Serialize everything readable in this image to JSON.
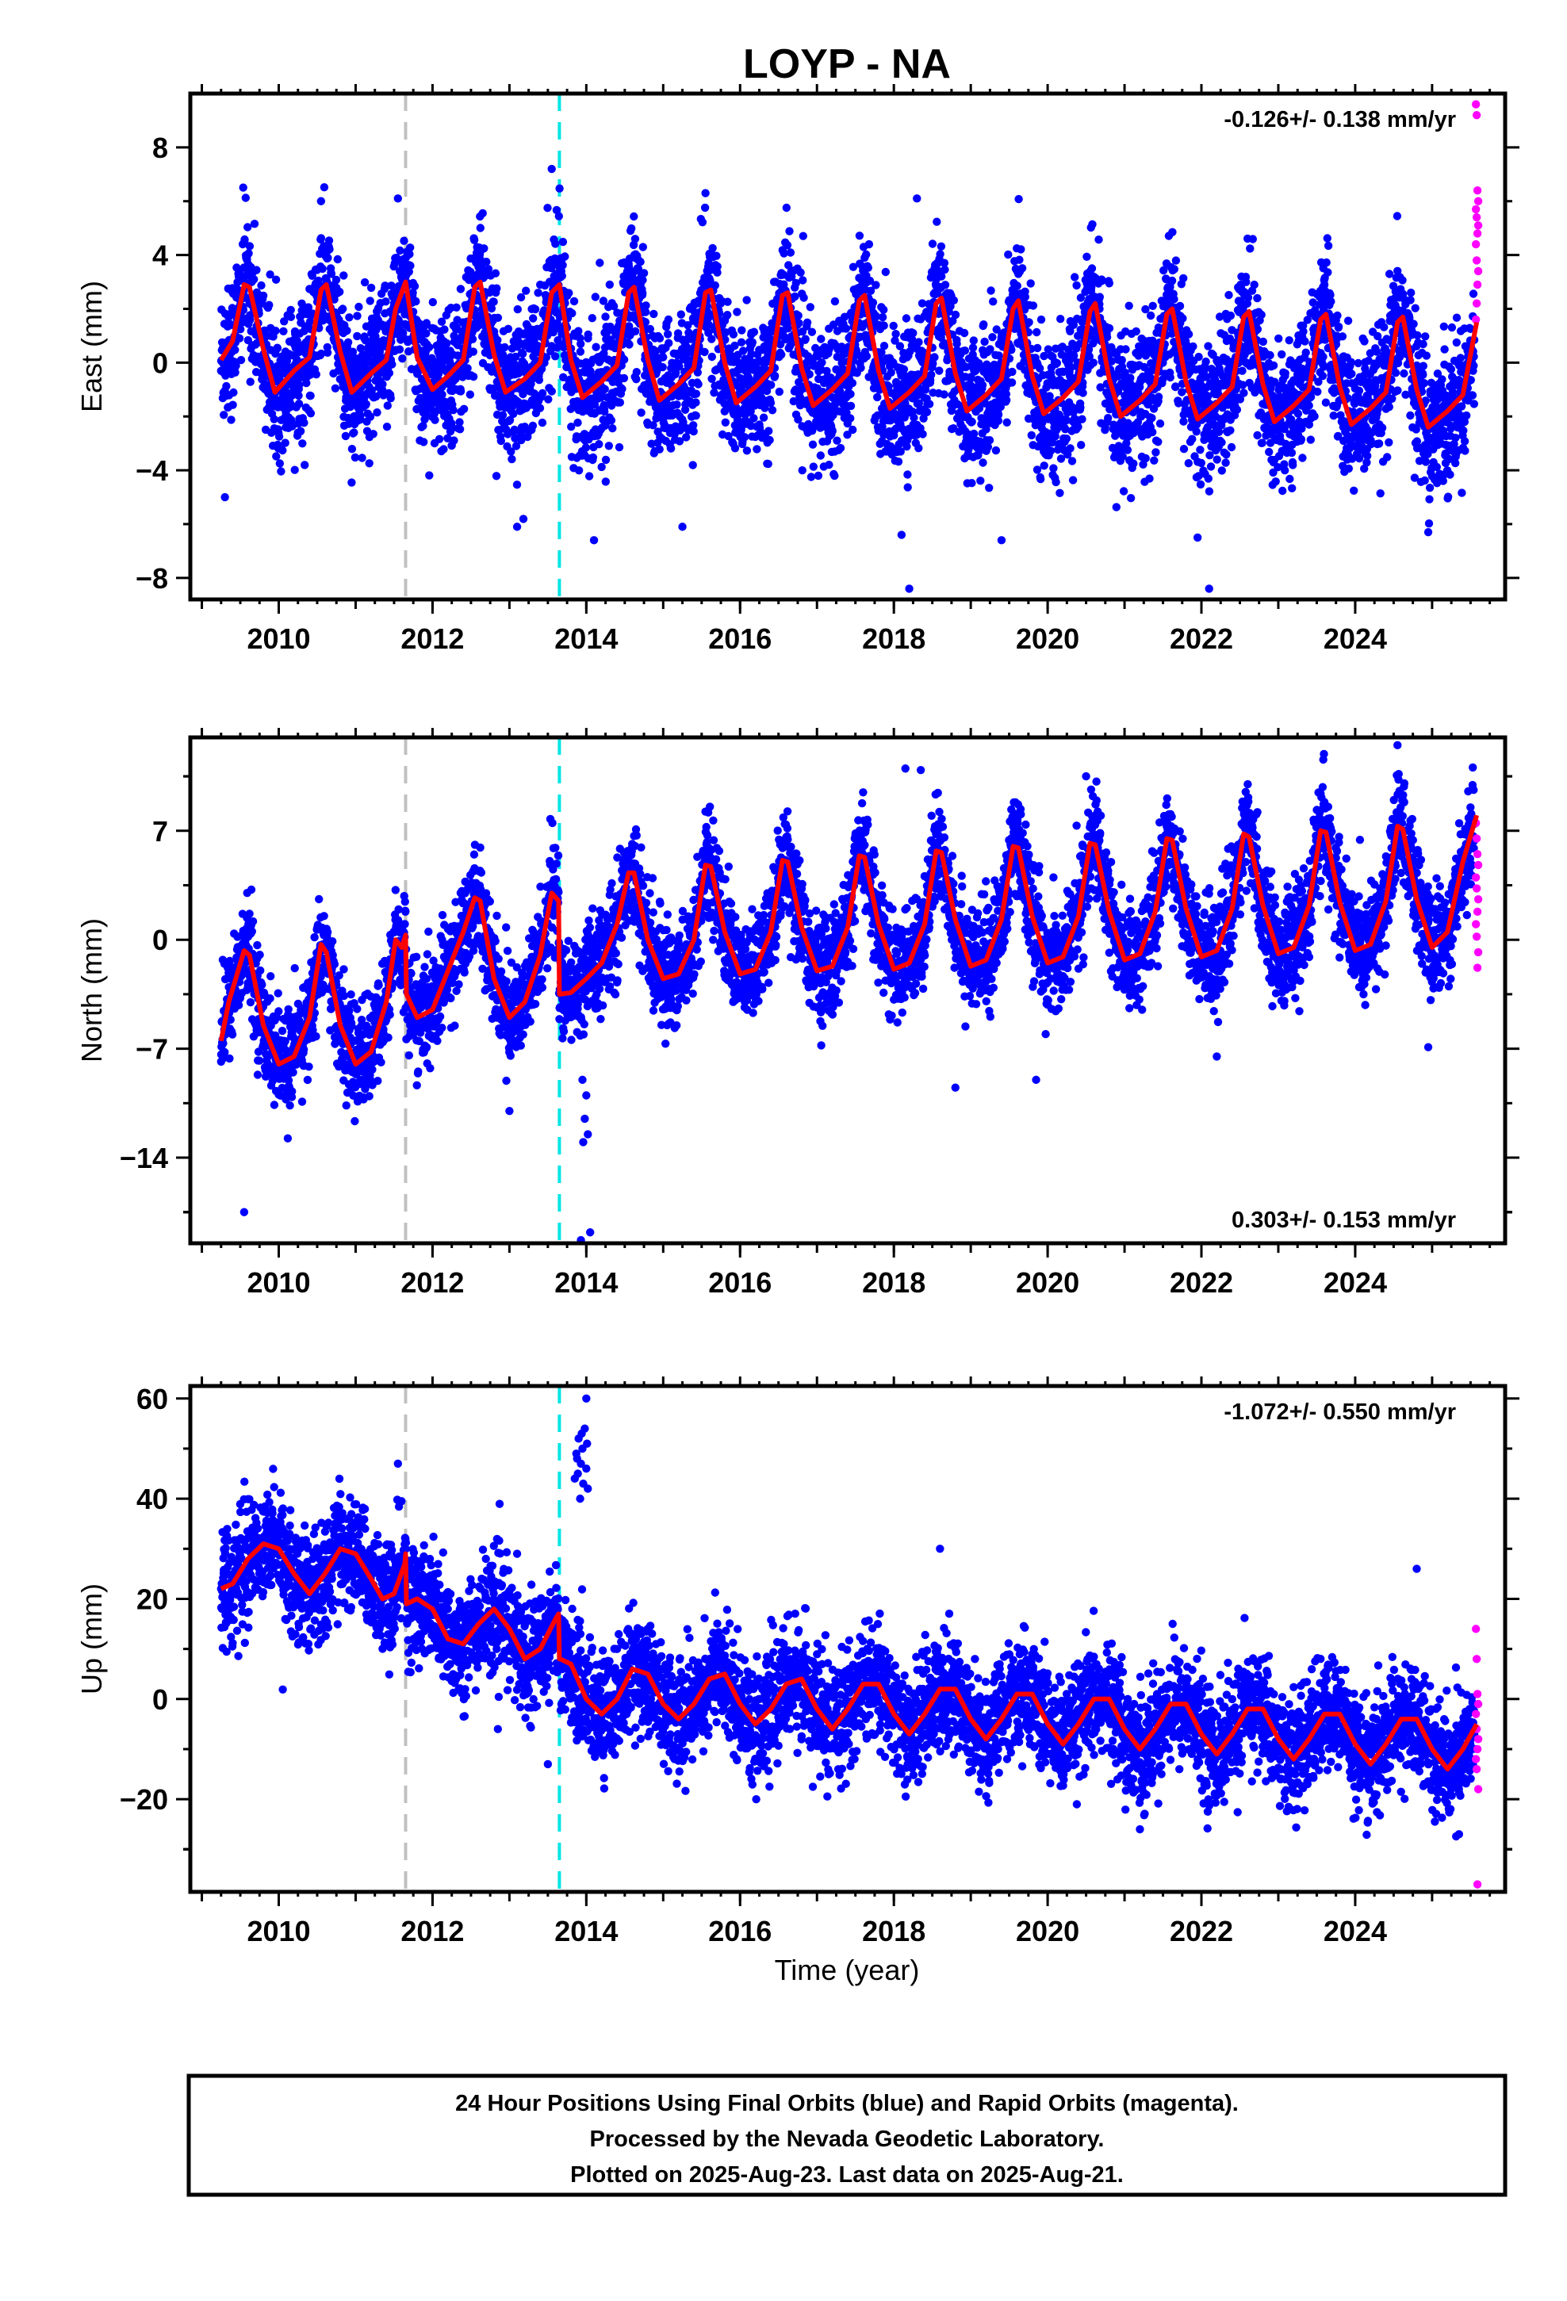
{
  "title": "LOYP - NA",
  "x_axis_label": "Time (year)",
  "footer": {
    "line1": "24 Hour Positions Using Final Orbits (blue) and Rapid Orbits (magenta).",
    "line2": "Processed by the Nevada Geodetic Laboratory.",
    "line3": "Plotted on 2025-Aug-23. Last data on 2025-Aug-21."
  },
  "colors": {
    "final_orbits": "#0000ff",
    "rapid_orbits": "#ff00ff",
    "model": "#ff0000",
    "break_equipment": "#c0c0c0",
    "break_event": "#00e5e5",
    "frame": "#000000"
  },
  "chart_data": [
    {
      "type": "scatter",
      "name": "east",
      "ylabel": "East (mm)",
      "rate_text": "-0.126+/- 0.138 mm/yr",
      "rate_position": "top-right",
      "xlim": [
        2008.85,
        2025.95
      ],
      "ylim": [
        -8.8,
        10.0
      ],
      "xticks": [
        2010,
        2012,
        2014,
        2016,
        2018,
        2020,
        2022,
        2024
      ],
      "xtick_labels": [
        "2010",
        "2012",
        "2014",
        "2016",
        "2018",
        "2020",
        "2022",
        "2024"
      ],
      "yticks": [
        -8,
        -4,
        0,
        4,
        8
      ],
      "ytick_labels": [
        "−8",
        "−4",
        "0",
        "4",
        "8"
      ],
      "breaks": [
        {
          "year": 2011.65,
          "kind": "equipment"
        },
        {
          "year": 2013.65,
          "kind": "event"
        }
      ],
      "final_range": [
        2009.25,
        2025.55
      ],
      "scatter_sigma": 1.25,
      "model": {
        "x": [
          2009.25,
          2009.4,
          2009.55,
          2009.62,
          2009.8,
          2009.95,
          2010.2,
          2010.4,
          2010.55,
          2010.62,
          2010.8,
          2010.95,
          2011.2,
          2011.4,
          2011.52,
          2011.65,
          2011.8,
          2012.0,
          2012.2,
          2012.4,
          2012.55,
          2012.62,
          2012.8,
          2012.95,
          2013.2,
          2013.4,
          2013.55,
          2013.65,
          2013.8,
          2013.95,
          2014.2,
          2014.4,
          2014.55,
          2014.62,
          2014.8,
          2014.95,
          2015.2,
          2015.4,
          2015.55,
          2015.62,
          2015.8,
          2015.95,
          2016.2,
          2016.4,
          2016.55,
          2016.62,
          2016.8,
          2016.95,
          2017.2,
          2017.4,
          2017.55,
          2017.62,
          2017.8,
          2017.95,
          2018.2,
          2018.4,
          2018.55,
          2018.62,
          2018.8,
          2018.95,
          2019.2,
          2019.4,
          2019.55,
          2019.62,
          2019.8,
          2019.95,
          2020.2,
          2020.4,
          2020.55,
          2020.62,
          2020.8,
          2020.95,
          2021.2,
          2021.4,
          2021.55,
          2021.62,
          2021.8,
          2021.95,
          2022.2,
          2022.4,
          2022.55,
          2022.62,
          2022.8,
          2022.95,
          2023.2,
          2023.4,
          2023.55,
          2023.62,
          2023.8,
          2023.95,
          2024.2,
          2024.4,
          2024.55,
          2024.62,
          2024.8,
          2024.95,
          2025.2,
          2025.4,
          2025.58
        ],
        "y": [
          0.1,
          0.8,
          2.9,
          2.8,
          0.5,
          -1.1,
          -0.3,
          0.2,
          2.7,
          2.9,
          0.4,
          -1.1,
          -0.4,
          0.1,
          2.0,
          3.0,
          0.2,
          -1.0,
          -0.5,
          0.1,
          2.8,
          3.0,
          0.3,
          -1.1,
          -0.6,
          0.0,
          2.6,
          2.9,
          0.1,
          -1.3,
          -0.7,
          -0.1,
          2.6,
          2.8,
          0.1,
          -1.4,
          -0.8,
          -0.2,
          2.6,
          2.7,
          0.0,
          -1.5,
          -0.9,
          -0.3,
          2.5,
          2.6,
          -0.2,
          -1.6,
          -1.0,
          -0.4,
          2.3,
          2.5,
          -0.3,
          -1.7,
          -1.1,
          -0.5,
          2.2,
          2.4,
          -0.4,
          -1.8,
          -1.2,
          -0.6,
          2.0,
          2.3,
          -0.5,
          -1.9,
          -1.3,
          -0.7,
          1.9,
          2.2,
          -0.6,
          -2.0,
          -1.4,
          -0.8,
          1.8,
          2.0,
          -0.7,
          -2.1,
          -1.5,
          -0.9,
          1.7,
          1.9,
          -0.8,
          -2.2,
          -1.6,
          -1.0,
          1.6,
          1.8,
          -0.9,
          -2.3,
          -1.7,
          -1.1,
          1.5,
          1.7,
          -1.0,
          -2.4,
          -1.8,
          -1.2,
          1.5
        ]
      },
      "final_outliers": [
        {
          "x": 2009.3,
          "y": -5.0
        },
        {
          "x": 2013.55,
          "y": 7.2
        },
        {
          "x": 2013.1,
          "y": -6.1
        },
        {
          "x": 2014.1,
          "y": -6.6
        },
        {
          "x": 2015.25,
          "y": -6.1
        },
        {
          "x": 2018.3,
          "y": 6.1
        },
        {
          "x": 2018.2,
          "y": -8.4
        },
        {
          "x": 2018.1,
          "y": -6.4
        },
        {
          "x": 2019.4,
          "y": -6.6
        },
        {
          "x": 2022.1,
          "y": -8.4
        },
        {
          "x": 2021.95,
          "y": -6.5
        },
        {
          "x": 2024.95,
          "y": -6.3
        },
        {
          "x": 2015.55,
          "y": 6.3
        },
        {
          "x": 2010.55,
          "y": 6.0
        },
        {
          "x": 2011.55,
          "y": 6.1
        }
      ],
      "rapid": {
        "x": [
          2025.57,
          2025.58,
          2025.59,
          2025.6,
          2025.57,
          2025.58,
          2025.6,
          2025.59,
          2025.57,
          2025.58,
          2025.6,
          2025.59,
          2025.58,
          2025.57
        ],
        "y": [
          9.6,
          9.2,
          6.4,
          6.0,
          5.7,
          5.4,
          5.1,
          4.8,
          4.4,
          3.8,
          3.4,
          2.9,
          2.2,
          1.6
        ]
      }
    },
    {
      "type": "scatter",
      "name": "north",
      "ylabel": "North (mm)",
      "rate_text": "0.303+/- 0.153 mm/yr",
      "rate_position": "bottom-right",
      "xlim": [
        2008.85,
        2025.95
      ],
      "ylim": [
        -19.5,
        13.0
      ],
      "xticks": [
        2010,
        2012,
        2014,
        2016,
        2018,
        2020,
        2022,
        2024
      ],
      "xtick_labels": [
        "2010",
        "2012",
        "2014",
        "2016",
        "2018",
        "2020",
        "2022",
        "2024"
      ],
      "yticks": [
        -14,
        -7,
        0,
        7
      ],
      "ytick_labels": [
        "−14",
        "−7",
        "0",
        "7"
      ],
      "breaks": [
        {
          "year": 2011.65,
          "kind": "equipment"
        },
        {
          "year": 2013.65,
          "kind": "event"
        }
      ],
      "final_range": [
        2009.25,
        2025.55
      ],
      "scatter_sigma": 1.6,
      "model": {
        "x": [
          2009.25,
          2009.35,
          2009.55,
          2009.62,
          2009.8,
          2010.0,
          2010.2,
          2010.4,
          2010.55,
          2010.62,
          2010.8,
          2011.0,
          2011.2,
          2011.4,
          2011.52,
          2011.6,
          2011.65,
          2011.66,
          2011.8,
          2012.0,
          2012.2,
          2012.4,
          2012.55,
          2012.62,
          2012.8,
          2013.0,
          2013.2,
          2013.4,
          2013.55,
          2013.64,
          2013.65,
          2013.66,
          2013.8,
          2014.0,
          2014.2,
          2014.4,
          2014.55,
          2014.62,
          2014.8,
          2015.0,
          2015.2,
          2015.4,
          2015.55,
          2015.62,
          2015.8,
          2016.0,
          2016.2,
          2016.4,
          2016.55,
          2016.62,
          2016.8,
          2017.0,
          2017.2,
          2017.4,
          2017.55,
          2017.62,
          2017.8,
          2018.0,
          2018.2,
          2018.4,
          2018.55,
          2018.62,
          2018.8,
          2019.0,
          2019.2,
          2019.4,
          2019.55,
          2019.62,
          2019.8,
          2020.0,
          2020.2,
          2020.4,
          2020.55,
          2020.62,
          2020.8,
          2021.0,
          2021.2,
          2021.4,
          2021.55,
          2021.62,
          2021.8,
          2022.0,
          2022.2,
          2022.4,
          2022.55,
          2022.62,
          2022.8,
          2023.0,
          2023.2,
          2023.4,
          2023.55,
          2023.62,
          2023.8,
          2024.0,
          2024.2,
          2024.4,
          2024.55,
          2024.62,
          2024.8,
          2025.0,
          2025.2,
          2025.4,
          2025.58
        ],
        "y": [
          -6.5,
          -4.0,
          -0.7,
          -1.0,
          -5.5,
          -8.0,
          -7.5,
          -5.0,
          -0.3,
          -0.8,
          -5.5,
          -8.0,
          -7.2,
          -4.0,
          0.0,
          -0.5,
          0.3,
          -3.5,
          -5.0,
          -4.5,
          -2.0,
          0.5,
          2.7,
          2.5,
          -2.5,
          -5.0,
          -4.0,
          -1.0,
          3.0,
          2.5,
          -3.5,
          -3.5,
          -3.4,
          -2.5,
          -1.5,
          1.0,
          4.3,
          4.3,
          0.0,
          -2.5,
          -2.2,
          0.0,
          4.8,
          4.7,
          0.5,
          -2.2,
          -1.9,
          0.5,
          5.1,
          5.0,
          0.8,
          -2.0,
          -1.7,
          0.8,
          5.4,
          5.3,
          1.0,
          -1.9,
          -1.5,
          1.0,
          5.7,
          5.6,
          1.3,
          -1.7,
          -1.3,
          1.3,
          6.0,
          5.9,
          1.5,
          -1.5,
          -1.1,
          1.5,
          6.2,
          6.1,
          1.8,
          -1.3,
          -0.9,
          1.8,
          6.5,
          6.4,
          2.0,
          -1.1,
          -0.7,
          2.0,
          6.8,
          6.6,
          2.2,
          -0.9,
          -0.5,
          2.2,
          7.0,
          6.9,
          2.4,
          -0.7,
          -0.3,
          2.5,
          7.3,
          7.1,
          2.6,
          -0.5,
          0.5,
          5.0,
          8.0
        ]
      },
      "final_outliers": [
        {
          "x": 2009.55,
          "y": -17.5
        },
        {
          "x": 2013.0,
          "y": -11.0
        },
        {
          "x": 2013.95,
          "y": -9.0
        },
        {
          "x": 2014.0,
          "y": -10.0
        },
        {
          "x": 2013.98,
          "y": -11.5
        },
        {
          "x": 2014.02,
          "y": -12.5
        },
        {
          "x": 2013.96,
          "y": -13.0
        },
        {
          "x": 2014.05,
          "y": -18.8
        },
        {
          "x": 2013.93,
          "y": -19.3
        },
        {
          "x": 2019.85,
          "y": -9.0
        },
        {
          "x": 2018.8,
          "y": -9.5
        },
        {
          "x": 2022.2,
          "y": -7.5
        },
        {
          "x": 2024.95,
          "y": -6.9
        },
        {
          "x": 2024.55,
          "y": 12.5
        },
        {
          "x": 2018.15,
          "y": 11.0
        },
        {
          "x": 2018.35,
          "y": 10.9
        },
        {
          "x": 2020.5,
          "y": 10.5
        }
      ],
      "rapid": {
        "x": [
          2025.57,
          2025.58,
          2025.59,
          2025.6,
          2025.57,
          2025.58,
          2025.6,
          2025.59,
          2025.57,
          2025.58,
          2025.6,
          2025.59
        ],
        "y": [
          7.5,
          6.5,
          5.5,
          4.8,
          4.0,
          3.3,
          2.6,
          1.8,
          1.0,
          0.2,
          -0.8,
          -1.8
        ]
      }
    },
    {
      "type": "scatter",
      "name": "up",
      "ylabel": "Up (mm)",
      "rate_text": "-1.072+/- 0.550 mm/yr",
      "rate_position": "top-right",
      "xlim": [
        2008.85,
        2025.95
      ],
      "ylim": [
        -38.5,
        62.5
      ],
      "xticks": [
        2010,
        2012,
        2014,
        2016,
        2018,
        2020,
        2022,
        2024
      ],
      "xtick_labels": [
        "2010",
        "2012",
        "2014",
        "2016",
        "2018",
        "2020",
        "2022",
        "2024"
      ],
      "yticks": [
        -20,
        0,
        20,
        40,
        60
      ],
      "ytick_labels": [
        "−20",
        "0",
        "20",
        "40",
        "60"
      ],
      "breaks": [
        {
          "year": 2011.65,
          "kind": "equipment"
        },
        {
          "year": 2013.65,
          "kind": "event"
        }
      ],
      "final_range": [
        2009.25,
        2025.55
      ],
      "scatter_sigma": 5.5,
      "model": {
        "x": [
          2009.25,
          2009.4,
          2009.6,
          2009.8,
          2010.0,
          2010.2,
          2010.4,
          2010.6,
          2010.8,
          2011.0,
          2011.2,
          2011.35,
          2011.5,
          2011.64,
          2011.65,
          2011.66,
          2011.8,
          2012.0,
          2012.2,
          2012.4,
          2012.6,
          2012.8,
          2013.0,
          2013.2,
          2013.4,
          2013.6,
          2013.64,
          2013.65,
          2013.66,
          2013.8,
          2014.0,
          2014.2,
          2014.4,
          2014.6,
          2014.8,
          2015.0,
          2015.2,
          2015.4,
          2015.6,
          2015.8,
          2016.0,
          2016.2,
          2016.4,
          2016.6,
          2016.8,
          2017.0,
          2017.2,
          2017.4,
          2017.6,
          2017.8,
          2018.0,
          2018.2,
          2018.4,
          2018.6,
          2018.8,
          2019.0,
          2019.2,
          2019.4,
          2019.6,
          2019.8,
          2020.0,
          2020.2,
          2020.4,
          2020.6,
          2020.8,
          2021.0,
          2021.2,
          2021.4,
          2021.6,
          2021.8,
          2022.0,
          2022.2,
          2022.4,
          2022.6,
          2022.8,
          2023.0,
          2023.2,
          2023.4,
          2023.6,
          2023.8,
          2024.0,
          2024.2,
          2024.4,
          2024.6,
          2024.8,
          2025.0,
          2025.2,
          2025.4,
          2025.58
        ],
        "y": [
          22,
          23,
          28,
          31,
          30,
          25,
          21,
          25,
          30,
          29,
          24,
          20,
          21,
          27,
          29,
          19,
          20,
          18,
          12,
          11,
          15,
          18,
          14,
          8,
          10,
          16,
          17,
          8,
          8,
          7,
          0,
          -3,
          0,
          6,
          5,
          -1,
          -4,
          -1,
          4,
          5,
          -1,
          -5,
          -2,
          3,
          4,
          -2,
          -6,
          -2,
          3,
          3,
          -3,
          -7,
          -3,
          2,
          2,
          -4,
          -8,
          -4,
          1,
          1,
          -5,
          -9,
          -5,
          0,
          0,
          -6,
          -10,
          -6,
          -1,
          -1,
          -7,
          -11,
          -7,
          -2,
          -2,
          -8,
          -12,
          -8,
          -3,
          -3,
          -9,
          -13,
          -9,
          -4,
          -4,
          -10,
          -14,
          -10,
          -5
        ]
      },
      "final_outliers": [
        {
          "x": 2013.85,
          "y": 44
        },
        {
          "x": 2013.88,
          "y": 48
        },
        {
          "x": 2013.9,
          "y": 52
        },
        {
          "x": 2013.95,
          "y": 50
        },
        {
          "x": 2014.0,
          "y": 46
        },
        {
          "x": 2014.02,
          "y": 42
        },
        {
          "x": 2013.92,
          "y": 40
        },
        {
          "x": 2013.98,
          "y": 54
        },
        {
          "x": 2014.0,
          "y": 60
        },
        {
          "x": 2013.87,
          "y": 49
        },
        {
          "x": 2013.93,
          "y": 47
        },
        {
          "x": 2013.96,
          "y": 43
        },
        {
          "x": 2014.01,
          "y": 51
        },
        {
          "x": 2013.89,
          "y": 45
        },
        {
          "x": 2013.94,
          "y": 53
        },
        {
          "x": 2018.6,
          "y": 30
        },
        {
          "x": 2024.8,
          "y": 26
        },
        {
          "x": 2011.55,
          "y": 47
        },
        {
          "x": 2012.85,
          "y": -6
        },
        {
          "x": 2013.5,
          "y": -13
        },
        {
          "x": 2021.2,
          "y": -26
        },
        {
          "x": 2025.35,
          "y": -27
        },
        {
          "x": 2013.1,
          "y": 29
        }
      ],
      "rapid": {
        "x": [
          2025.57,
          2025.58,
          2025.59,
          2025.6,
          2025.57,
          2025.58,
          2025.6,
          2025.59,
          2025.57,
          2025.58,
          2025.6,
          2025.59
        ],
        "y": [
          14,
          8,
          1,
          -1,
          -3,
          -6,
          -8,
          -10,
          -12,
          -14,
          -18,
          -37
        ]
      }
    }
  ]
}
